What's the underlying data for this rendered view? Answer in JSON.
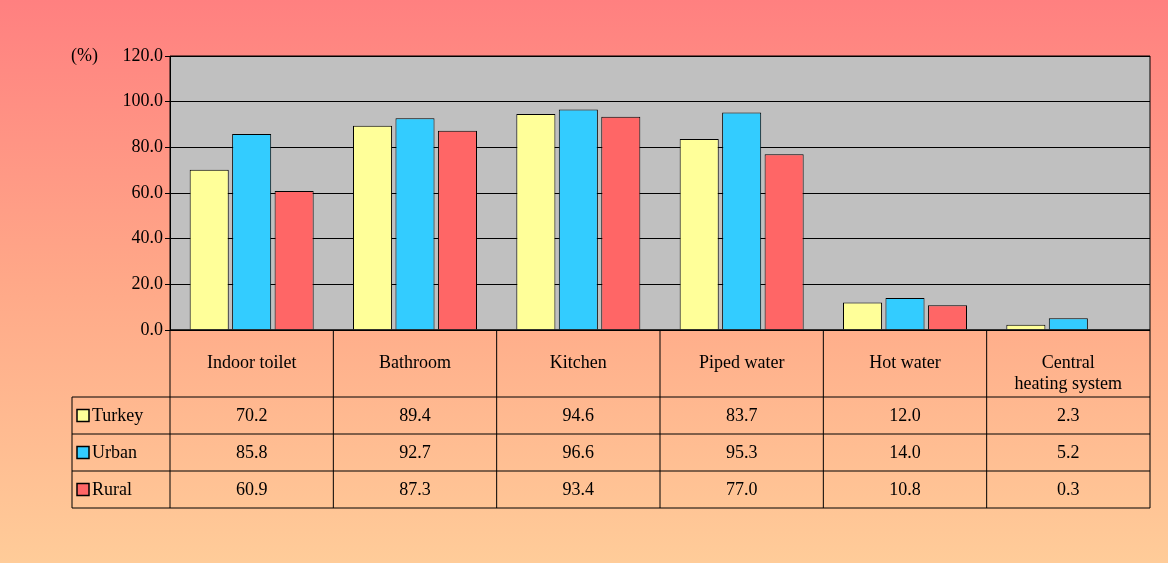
{
  "chart_data": {
    "type": "bar",
    "ylabel": "(%)",
    "categories": [
      "Indoor toilet",
      "Bathroom",
      "Kitchen",
      "Piped water",
      "Hot water",
      "Central heating system"
    ],
    "series": [
      {
        "name": "Turkey",
        "color": "#ffff99",
        "values": [
          70.2,
          89.4,
          94.6,
          83.7,
          12.0,
          2.3
        ],
        "value_labels": [
          "70.2",
          "89.4",
          "94.6",
          "83.7",
          "12.0",
          "2.3"
        ]
      },
      {
        "name": "Urban",
        "color": "#33ccff",
        "values": [
          85.8,
          92.7,
          96.6,
          95.3,
          14.0,
          5.2
        ],
        "value_labels": [
          "85.8",
          "92.7",
          "96.6",
          "95.3",
          "14.0",
          "5.2"
        ]
      },
      {
        "name": "Rural",
        "color": "#ff6666",
        "values": [
          60.9,
          87.3,
          93.4,
          77.0,
          10.8,
          0.3
        ],
        "value_labels": [
          "60.9",
          "87.3",
          "93.4",
          "77.0",
          "10.8",
          "0.3"
        ]
      }
    ],
    "ylim": [
      0,
      120
    ],
    "yticks": [
      {
        "value": 0,
        "label": "0.0"
      },
      {
        "value": 20,
        "label": "20.0"
      },
      {
        "value": 40,
        "label": "40.0"
      },
      {
        "value": 60,
        "label": "60.0"
      },
      {
        "value": 80,
        "label": "80.0"
      },
      {
        "value": 100,
        "label": "100.0"
      },
      {
        "value": 120,
        "label": "120.0"
      }
    ],
    "grid": "y",
    "legend": "bottom"
  }
}
